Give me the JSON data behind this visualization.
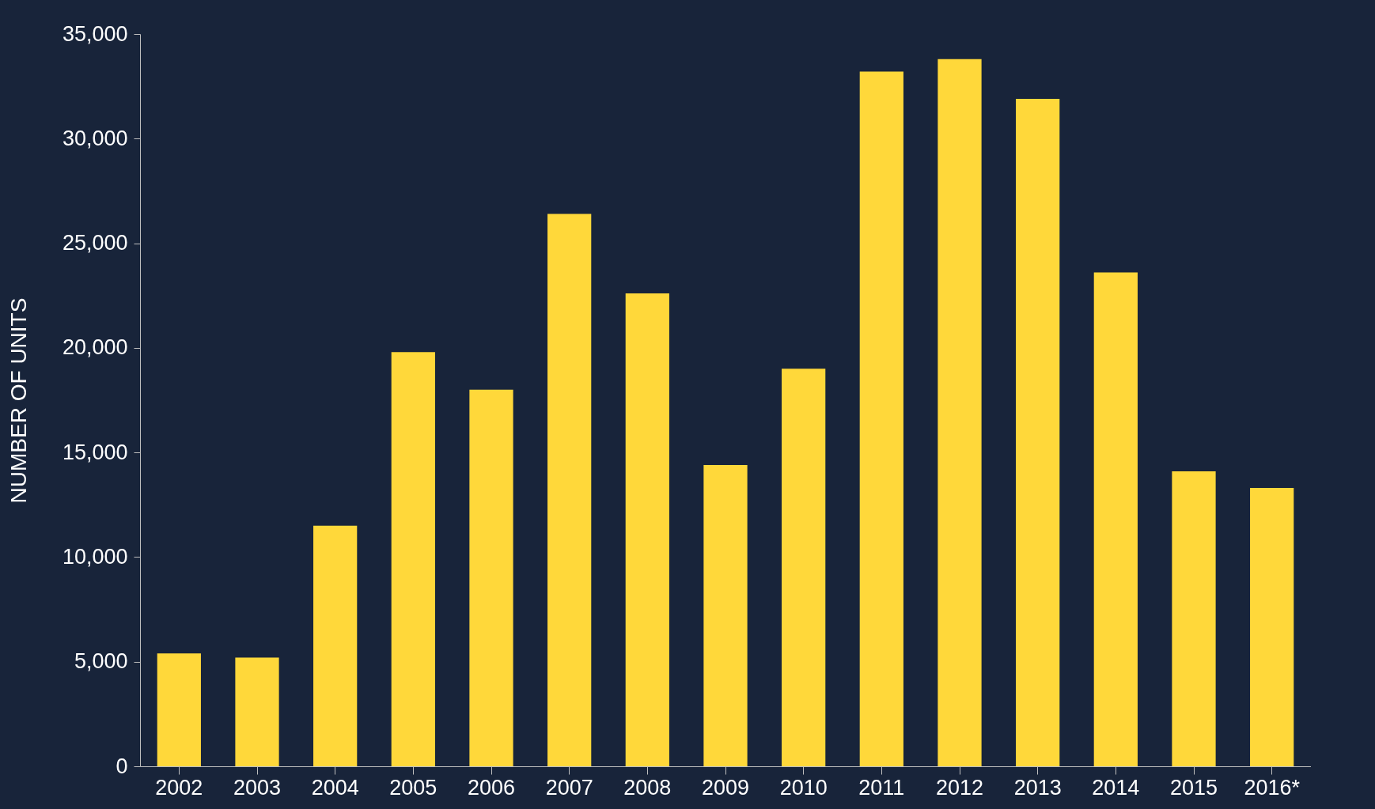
{
  "chart_data": {
    "type": "bar",
    "ylabel": "NUMBER OF UNITS",
    "categories": [
      "2002",
      "2003",
      "2004",
      "2005",
      "2006",
      "2007",
      "2008",
      "2009",
      "2010",
      "2011",
      "2012",
      "2013",
      "2014",
      "2015",
      "2016*"
    ],
    "values": [
      5400,
      5200,
      11500,
      19800,
      18000,
      26400,
      22600,
      14400,
      19000,
      33200,
      33800,
      31900,
      23600,
      14100,
      13300
    ],
    "color": "#ffd83a",
    "ylim": [
      0,
      35000
    ],
    "yticks": [
      0,
      {
        "value": 5000,
        "label": "5,000"
      },
      {
        "value": 10000,
        "label": "10,000"
      },
      {
        "value": 15000,
        "label": "15,000"
      },
      {
        "value": 20000,
        "label": "20,000"
      },
      {
        "value": 25000,
        "label": "25,000"
      },
      {
        "value": 30000,
        "label": "30,000"
      },
      {
        "value": 35000,
        "label": "35,000"
      }
    ],
    "grid": false
  }
}
